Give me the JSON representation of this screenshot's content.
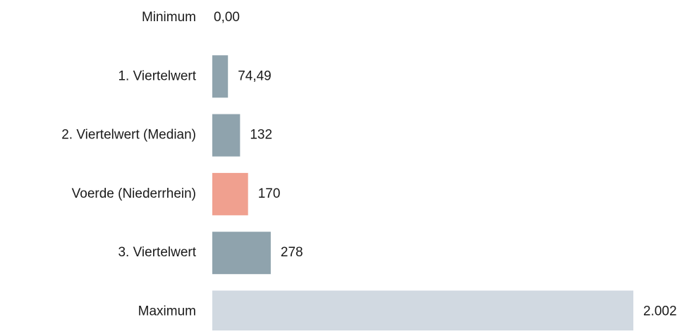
{
  "chart_data": {
    "type": "bar",
    "orientation": "horizontal",
    "categories": [
      "Minimum",
      "1. Viertelwert",
      "2. Viertelwert (Median)",
      "Voerde (Niederrhein)",
      "3. Viertelwert",
      "Maximum"
    ],
    "values": [
      0,
      74.49,
      132,
      170,
      278,
      2002
    ],
    "value_labels": [
      "0,00",
      "74,49",
      "132",
      "170",
      "278",
      "2.002"
    ],
    "colors": [
      "#8fa3ad",
      "#8fa3ad",
      "#8fa3ad",
      "#f0a08f",
      "#8fa3ad",
      "#d1d9e1"
    ]
  }
}
